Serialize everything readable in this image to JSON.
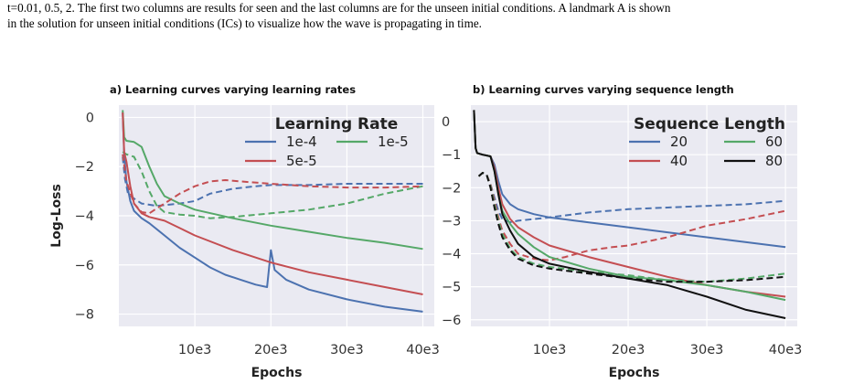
{
  "caption": {
    "line1": "t=0.01, 0.5, 2. The first two columns are results for seen and the last columns are for the unseen initial conditions. A landmark A is shown",
    "line2": "in the solution for unseen initial conditions (ICs) to visualize how the wave is propagating in time."
  },
  "colors": {
    "blue": "#4c72b0",
    "red": "#c44e52",
    "green": "#55a868",
    "black": "#111111",
    "plot_bg": "#eaeaf2",
    "grid": "#ffffff"
  },
  "chart_data": [
    {
      "type": "line",
      "title": "a) Learning curves varying learning rates",
      "xlabel": "Epochs",
      "ylabel": "Log-Loss",
      "xlim": [
        0,
        41500
      ],
      "ylim": [
        -8.5,
        0.5
      ],
      "xticks": [
        10000,
        20000,
        30000,
        40000
      ],
      "xtick_labels": [
        "10e3",
        "20e3",
        "30e3",
        "40e3"
      ],
      "yticks": [
        0,
        -2,
        -4,
        -6,
        -8
      ],
      "ytick_labels": [
        "0",
        "−2",
        "−4",
        "−6",
        "−8"
      ],
      "grid": true,
      "legend": {
        "title": "Learning Rate",
        "placement": "top-right",
        "entries": [
          "1e-4",
          "1e-5",
          "5e-5"
        ]
      },
      "series": [
        {
          "name": "1e-4",
          "color": "blue",
          "style": "solid",
          "x": [
            500,
            700,
            1000,
            1500,
            2000,
            3000,
            4000,
            6000,
            8000,
            10000,
            12000,
            14000,
            16000,
            18000,
            19500,
            20000,
            20500,
            22000,
            25000,
            30000,
            35000,
            40000
          ],
          "y": [
            0.2,
            -1.5,
            -2.6,
            -3.4,
            -3.8,
            -4.1,
            -4.3,
            -4.8,
            -5.3,
            -5.7,
            -6.1,
            -6.4,
            -6.6,
            -6.8,
            -6.9,
            -5.4,
            -6.2,
            -6.6,
            -7.0,
            -7.4,
            -7.7,
            -7.9
          ]
        },
        {
          "name": "1e-4",
          "color": "blue",
          "style": "dashed",
          "x": [
            500,
            800,
            1200,
            2000,
            3000,
            5000,
            8000,
            10000,
            12000,
            15000,
            18000,
            20000,
            25000,
            30000,
            35000,
            40000
          ],
          "y": [
            -1.6,
            -2.5,
            -3.1,
            -3.3,
            -3.5,
            -3.6,
            -3.5,
            -3.4,
            -3.1,
            -2.9,
            -2.8,
            -2.75,
            -2.75,
            -2.7,
            -2.7,
            -2.7
          ]
        },
        {
          "name": "1e-5",
          "color": "green",
          "style": "solid",
          "x": [
            500,
            700,
            1000,
            2000,
            3000,
            4000,
            5000,
            6000,
            8000,
            10000,
            15000,
            20000,
            25000,
            30000,
            35000,
            40000
          ],
          "y": [
            0.3,
            -0.8,
            -0.95,
            -1.0,
            -1.2,
            -2.0,
            -2.7,
            -3.2,
            -3.5,
            -3.75,
            -4.1,
            -4.4,
            -4.65,
            -4.9,
            -5.1,
            -5.35
          ]
        },
        {
          "name": "1e-5",
          "color": "green",
          "style": "dashed",
          "x": [
            500,
            1000,
            2000,
            3000,
            4000,
            5000,
            6000,
            8000,
            10000,
            12000,
            15000,
            20000,
            25000,
            30000,
            35000,
            40000
          ],
          "y": [
            -1.4,
            -1.5,
            -1.6,
            -2.2,
            -3.0,
            -3.6,
            -3.85,
            -3.95,
            -4.0,
            -4.1,
            -4.05,
            -3.9,
            -3.75,
            -3.5,
            -3.1,
            -2.8
          ]
        },
        {
          "name": "5e-5",
          "color": "red",
          "style": "solid",
          "x": [
            500,
            700,
            1000,
            1500,
            2000,
            3000,
            4000,
            6000,
            8000,
            10000,
            15000,
            20000,
            25000,
            30000,
            35000,
            40000
          ],
          "y": [
            0.2,
            -1.4,
            -1.8,
            -2.8,
            -3.5,
            -3.9,
            -4.05,
            -4.2,
            -4.5,
            -4.8,
            -5.4,
            -5.9,
            -6.3,
            -6.6,
            -6.9,
            -7.2
          ]
        },
        {
          "name": "5e-5",
          "color": "red",
          "style": "dashed",
          "x": [
            500,
            1000,
            2000,
            3000,
            4000,
            5000,
            6000,
            8000,
            10000,
            12000,
            14000,
            16000,
            20000,
            25000,
            30000,
            35000,
            40000
          ],
          "y": [
            -1.5,
            -2.6,
            -3.5,
            -3.85,
            -3.9,
            -3.7,
            -3.5,
            -3.1,
            -2.8,
            -2.6,
            -2.55,
            -2.6,
            -2.7,
            -2.8,
            -2.85,
            -2.85,
            -2.8
          ]
        }
      ]
    },
    {
      "type": "line",
      "title": "b) Learning curves varying sequence length",
      "xlabel": "Epochs",
      "ylabel": "",
      "xlim": [
        0,
        41500
      ],
      "ylim": [
        -6.2,
        0.5
      ],
      "xticks": [
        10000,
        20000,
        30000,
        40000
      ],
      "xtick_labels": [
        "10e3",
        "20e3",
        "30e3",
        "40e3"
      ],
      "yticks": [
        0,
        -1,
        -2,
        -3,
        -4,
        -5,
        -6
      ],
      "ytick_labels": [
        "0",
        "−1",
        "−2",
        "−3",
        "−4",
        "−5",
        "−6"
      ],
      "grid": true,
      "legend": {
        "title": "Sequence Length",
        "placement": "top-right",
        "entries": [
          "20",
          "60",
          "40",
          "80"
        ]
      },
      "series": [
        {
          "name": "20",
          "color": "blue",
          "style": "solid",
          "x": [
            400,
            600,
            800,
            1500,
            2500,
            3000,
            3500,
            4000,
            5000,
            6000,
            8000,
            10000,
            15000,
            20000,
            25000,
            30000,
            35000,
            40000
          ],
          "y": [
            0.35,
            -0.8,
            -0.95,
            -1.0,
            -1.05,
            -1.3,
            -1.8,
            -2.2,
            -2.5,
            -2.65,
            -2.8,
            -2.9,
            -3.05,
            -3.2,
            -3.35,
            -3.5,
            -3.65,
            -3.8
          ]
        },
        {
          "name": "20",
          "color": "blue",
          "style": "dashed",
          "x": [
            1000,
            1500,
            2000,
            2500,
            3000,
            3500,
            4000,
            5000,
            6000,
            8000,
            10000,
            15000,
            20000,
            25000,
            30000,
            35000,
            40000
          ],
          "y": [
            -1.65,
            -1.55,
            -1.6,
            -1.9,
            -2.3,
            -2.7,
            -2.95,
            -3.05,
            -3.0,
            -2.95,
            -2.9,
            -2.75,
            -2.65,
            -2.6,
            -2.55,
            -2.5,
            -2.4
          ]
        },
        {
          "name": "40",
          "color": "red",
          "style": "solid",
          "x": [
            400,
            600,
            800,
            1500,
            2500,
            3000,
            3500,
            4000,
            5000,
            6000,
            8000,
            10000,
            15000,
            20000,
            25000,
            30000,
            35000,
            40000
          ],
          "y": [
            0.35,
            -0.8,
            -0.95,
            -1.0,
            -1.05,
            -1.4,
            -2.0,
            -2.5,
            -2.95,
            -3.2,
            -3.5,
            -3.75,
            -4.1,
            -4.4,
            -4.7,
            -4.95,
            -5.15,
            -5.3
          ]
        },
        {
          "name": "40",
          "color": "red",
          "style": "dashed",
          "x": [
            1000,
            1500,
            2000,
            2500,
            3000,
            3500,
            4000,
            5000,
            6000,
            8000,
            10000,
            12000,
            15000,
            18000,
            20000,
            25000,
            30000,
            35000,
            40000
          ],
          "y": [
            -1.65,
            -1.55,
            -1.6,
            -1.9,
            -2.4,
            -2.9,
            -3.3,
            -3.7,
            -4.0,
            -4.15,
            -4.2,
            -4.1,
            -3.9,
            -3.8,
            -3.75,
            -3.5,
            -3.15,
            -2.95,
            -2.7
          ]
        },
        {
          "name": "60",
          "color": "green",
          "style": "solid",
          "x": [
            400,
            600,
            800,
            1500,
            2500,
            3000,
            3500,
            4000,
            5000,
            6000,
            8000,
            10000,
            15000,
            20000,
            25000,
            30000,
            35000,
            40000
          ],
          "y": [
            0.35,
            -0.8,
            -0.95,
            -1.0,
            -1.05,
            -1.5,
            -2.2,
            -2.7,
            -3.1,
            -3.4,
            -3.8,
            -4.1,
            -4.45,
            -4.7,
            -4.8,
            -4.95,
            -5.15,
            -5.4
          ]
        },
        {
          "name": "60",
          "color": "green",
          "style": "dashed",
          "x": [
            1000,
            1500,
            2000,
            2500,
            3000,
            3500,
            4000,
            5000,
            6000,
            8000,
            10000,
            15000,
            20000,
            25000,
            30000,
            35000,
            40000
          ],
          "y": [
            -1.65,
            -1.55,
            -1.6,
            -1.95,
            -2.5,
            -3.0,
            -3.4,
            -3.85,
            -4.1,
            -4.3,
            -4.4,
            -4.55,
            -4.65,
            -4.8,
            -4.85,
            -4.75,
            -4.6
          ]
        },
        {
          "name": "80",
          "color": "black",
          "style": "solid",
          "x": [
            400,
            600,
            800,
            1500,
            2500,
            3000,
            3500,
            4000,
            5000,
            6000,
            8000,
            10000,
            15000,
            20000,
            25000,
            30000,
            35000,
            40000
          ],
          "y": [
            0.35,
            -0.8,
            -0.95,
            -1.0,
            -1.05,
            -1.5,
            -2.2,
            -2.8,
            -3.3,
            -3.7,
            -4.1,
            -4.3,
            -4.55,
            -4.75,
            -4.95,
            -5.3,
            -5.7,
            -5.95
          ]
        },
        {
          "name": "80",
          "color": "black",
          "style": "dashed",
          "x": [
            1000,
            1500,
            2000,
            2500,
            3000,
            3500,
            4000,
            5000,
            6000,
            8000,
            10000,
            15000,
            20000,
            25000,
            30000,
            35000,
            40000
          ],
          "y": [
            -1.65,
            -1.55,
            -1.6,
            -2.0,
            -2.6,
            -3.1,
            -3.5,
            -3.9,
            -4.15,
            -4.35,
            -4.45,
            -4.6,
            -4.75,
            -4.85,
            -4.85,
            -4.8,
            -4.7
          ]
        }
      ]
    }
  ]
}
